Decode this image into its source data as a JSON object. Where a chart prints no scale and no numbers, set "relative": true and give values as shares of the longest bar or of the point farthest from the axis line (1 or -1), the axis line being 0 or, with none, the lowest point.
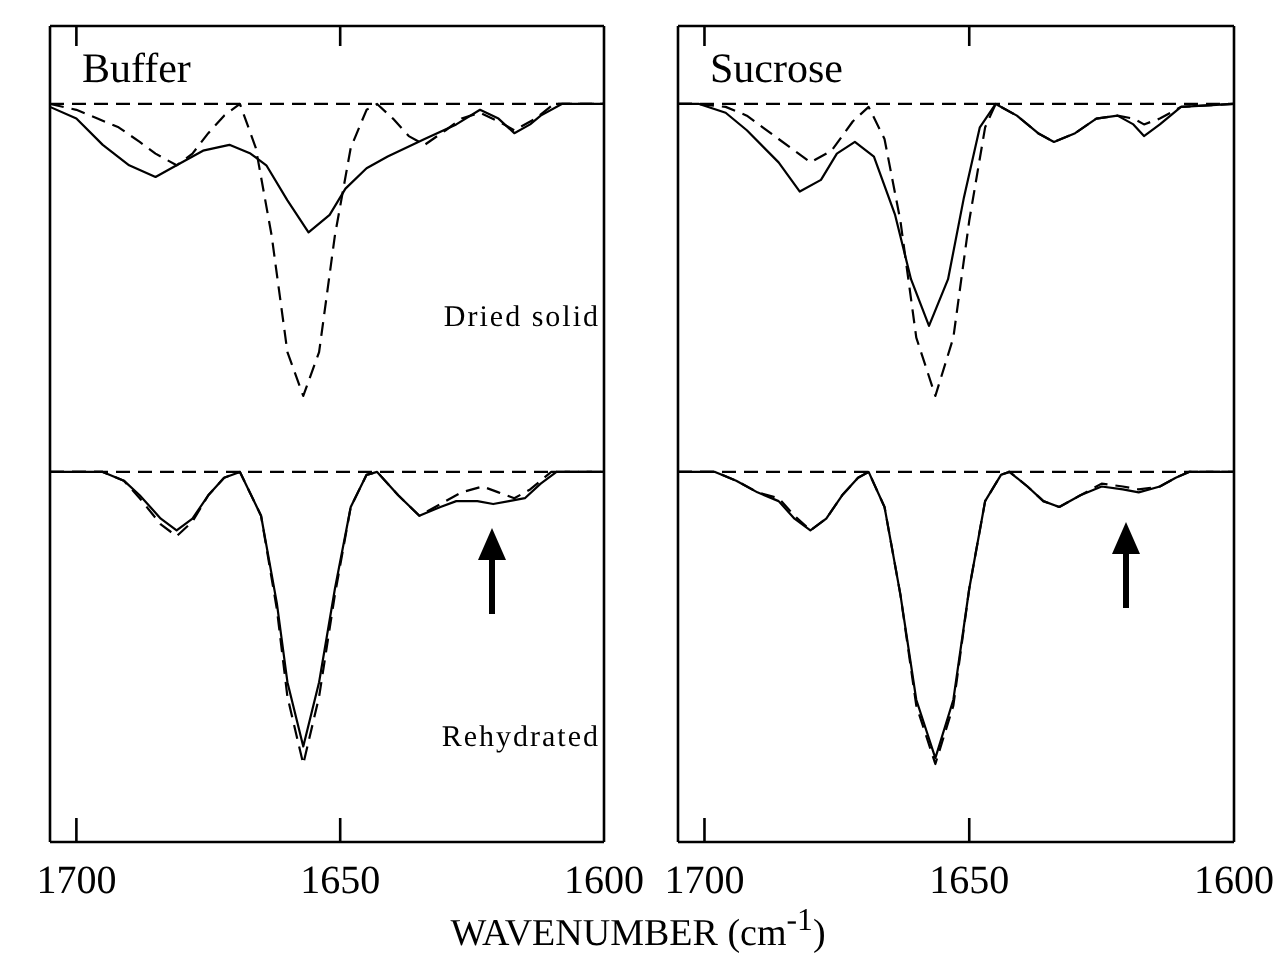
{
  "chart_data": [
    {
      "type": "line",
      "title": "Buffer",
      "relative": true,
      "xlim": [
        1705,
        1600
      ],
      "xticks": [
        1700,
        1650,
        1600
      ],
      "tick_labels": false,
      "annotations": [
        "Dried solid"
      ],
      "ref_lines": [
        {
          "axis": "y",
          "value": 0,
          "line_style": "dashed"
        }
      ],
      "series": [
        {
          "color": "#000000",
          "line_style": "solid",
          "x": [
            1705,
            1700,
            1695,
            1690,
            1685,
            1681,
            1676,
            1671,
            1667,
            1664,
            1660,
            1656,
            1652,
            1649,
            1645,
            1641,
            1634,
            1628,
            1623.5,
            1620,
            1617,
            1614,
            1612,
            1608,
            1600
          ],
          "values": [
            -0.01,
            -0.05,
            -0.14,
            -0.21,
            -0.25,
            -0.21,
            -0.16,
            -0.14,
            -0.17,
            -0.21,
            -0.33,
            -0.44,
            -0.38,
            -0.29,
            -0.22,
            -0.18,
            -0.12,
            -0.07,
            -0.02,
            -0.05,
            -0.1,
            -0.07,
            -0.04,
            0,
            0
          ]
        },
        {
          "color": "#000000",
          "line_style": "dashed",
          "x": [
            1705,
            1700,
            1696,
            1692,
            1688,
            1685,
            1681,
            1678,
            1675,
            1672,
            1669,
            1666,
            1663,
            1660,
            1657,
            1654,
            1651,
            1648,
            1645,
            1643,
            1640,
            1637,
            1634,
            1630,
            1627,
            1623.5,
            1620,
            1617,
            1613,
            1609.5,
            1600
          ],
          "values": [
            0,
            -0.02,
            -0.05,
            -0.08,
            -0.13,
            -0.17,
            -0.21,
            -0.17,
            -0.1,
            -0.04,
            0,
            -0.15,
            -0.45,
            -0.85,
            -1,
            -0.85,
            -0.45,
            -0.15,
            -0.02,
            0,
            -0.05,
            -0.11,
            -0.14,
            -0.09,
            -0.05,
            -0.03,
            -0.06,
            -0.09,
            -0.05,
            0,
            0
          ]
        }
      ]
    },
    {
      "type": "line",
      "title": "Sucrose",
      "relative": true,
      "xlim": [
        1705,
        1600
      ],
      "xticks": [
        1700,
        1650,
        1600
      ],
      "tick_labels": false,
      "ref_lines": [
        {
          "axis": "y",
          "value": 0,
          "line_style": "dashed"
        }
      ],
      "series": [
        {
          "color": "#000000",
          "line_style": "solid",
          "x": [
            1705,
            1701,
            1696,
            1692,
            1686,
            1682,
            1678,
            1675,
            1671.6,
            1668,
            1664,
            1661,
            1657.6,
            1654,
            1651,
            1648,
            1645,
            1641,
            1637,
            1634,
            1630,
            1626,
            1622,
            1619,
            1617,
            1614,
            1610,
            1600
          ],
          "values": [
            0,
            0,
            -0.03,
            -0.09,
            -0.2,
            -0.3,
            -0.26,
            -0.17,
            -0.13,
            -0.18,
            -0.38,
            -0.6,
            -0.76,
            -0.6,
            -0.32,
            -0.08,
            0,
            -0.04,
            -0.1,
            -0.13,
            -0.1,
            -0.05,
            -0.04,
            -0.07,
            -0.11,
            -0.07,
            -0.01,
            0
          ]
        },
        {
          "color": "#000000",
          "line_style": "dashed",
          "x": [
            1705,
            1701,
            1696,
            1692,
            1686,
            1680,
            1676,
            1672,
            1669,
            1666,
            1663,
            1660,
            1656.4,
            1653,
            1650,
            1647,
            1645,
            1641,
            1637,
            1634,
            1630,
            1626,
            1622,
            1619,
            1617,
            1614,
            1610,
            1600
          ],
          "values": [
            0,
            0,
            -0.01,
            -0.04,
            -0.12,
            -0.2,
            -0.16,
            -0.06,
            -0.01,
            -0.12,
            -0.4,
            -0.8,
            -1,
            -0.8,
            -0.4,
            -0.08,
            0,
            -0.04,
            -0.1,
            -0.13,
            -0.1,
            -0.05,
            -0.04,
            -0.05,
            -0.07,
            -0.05,
            -0.01,
            0
          ]
        }
      ]
    },
    {
      "type": "line",
      "relative": true,
      "xlim": [
        1705,
        1600
      ],
      "xticks": [
        1700,
        1650,
        1600
      ],
      "tick_labels": "x",
      "xlabel": "WAVENUMBER (cm$^{-1}$)",
      "annotations": [
        "Rehydrated"
      ],
      "ref_lines": [
        {
          "axis": "y",
          "value": 0,
          "line_style": "dashed"
        }
      ],
      "series": [
        {
          "color": "#000000",
          "line_style": "solid",
          "x": [
            1705,
            1695,
            1691,
            1688,
            1684,
            1681,
            1678,
            1675,
            1672,
            1669,
            1665,
            1662,
            1660,
            1657,
            1654,
            1651,
            1648,
            1645,
            1643,
            1639,
            1635,
            1631,
            1628,
            1624,
            1621,
            1618,
            1615,
            1612,
            1609,
            1600
          ],
          "values": [
            0,
            0,
            -0.03,
            -0.08,
            -0.16,
            -0.2,
            -0.16,
            -0.08,
            -0.02,
            0,
            -0.15,
            -0.45,
            -0.72,
            -0.94,
            -0.72,
            -0.4,
            -0.12,
            -0.01,
            0,
            -0.08,
            -0.15,
            -0.12,
            -0.1,
            -0.1,
            -0.11,
            -0.1,
            -0.09,
            -0.04,
            0,
            0
          ]
        },
        {
          "color": "#000000",
          "line_style": "dashed",
          "x": [
            1705,
            1695,
            1691,
            1688,
            1684,
            1681,
            1678,
            1675,
            1672,
            1669,
            1665,
            1662,
            1660,
            1657,
            1654,
            1651,
            1648,
            1645,
            1643,
            1639,
            1635,
            1631,
            1627,
            1623,
            1620,
            1617,
            1614,
            1610,
            1600
          ],
          "values": [
            0,
            0,
            -0.03,
            -0.09,
            -0.18,
            -0.22,
            -0.17,
            -0.08,
            -0.02,
            0,
            -0.15,
            -0.47,
            -0.77,
            -1,
            -0.77,
            -0.42,
            -0.12,
            -0.01,
            0,
            -0.08,
            -0.15,
            -0.11,
            -0.07,
            -0.05,
            -0.07,
            -0.09,
            -0.06,
            0,
            0
          ]
        }
      ]
    },
    {
      "type": "line",
      "relative": true,
      "xlim": [
        1705,
        1600
      ],
      "xticks": [
        1700,
        1650,
        1600
      ],
      "tick_labels": "x",
      "ref_lines": [
        {
          "axis": "y",
          "value": 0,
          "line_style": "dashed"
        }
      ],
      "series": [
        {
          "color": "#000000",
          "line_style": "solid",
          "x": [
            1705,
            1698,
            1694,
            1690,
            1686,
            1683,
            1680,
            1677,
            1674,
            1671,
            1669,
            1666,
            1663,
            1660,
            1656.4,
            1653,
            1650,
            1647,
            1644,
            1642.4,
            1639,
            1636,
            1633,
            1629,
            1625,
            1621,
            1618,
            1614,
            1611,
            1608.5,
            1600
          ],
          "values": [
            0,
            0,
            -0.03,
            -0.07,
            -0.1,
            -0.16,
            -0.2,
            -0.16,
            -0.08,
            -0.02,
            0,
            -0.12,
            -0.42,
            -0.78,
            -0.98,
            -0.78,
            -0.4,
            -0.1,
            -0.01,
            0,
            -0.05,
            -0.1,
            -0.12,
            -0.08,
            -0.05,
            -0.06,
            -0.07,
            -0.05,
            -0.02,
            0,
            0
          ]
        },
        {
          "color": "#000000",
          "line_style": "dashed",
          "x": [
            1705,
            1698,
            1694,
            1690,
            1686,
            1683,
            1680,
            1677,
            1674,
            1671,
            1669,
            1666,
            1663,
            1660,
            1656.4,
            1653,
            1650,
            1647,
            1644,
            1642.4,
            1639,
            1636,
            1633,
            1629,
            1625,
            1621,
            1618,
            1614,
            1611,
            1608.5,
            1600
          ],
          "values": [
            0,
            0,
            -0.03,
            -0.07,
            -0.09,
            -0.15,
            -0.2,
            -0.16,
            -0.08,
            -0.02,
            0,
            -0.12,
            -0.42,
            -0.8,
            -1,
            -0.8,
            -0.4,
            -0.1,
            -0.01,
            0,
            -0.05,
            -0.1,
            -0.12,
            -0.08,
            -0.04,
            -0.05,
            -0.06,
            -0.05,
            -0.02,
            0,
            0
          ]
        }
      ]
    }
  ]
}
